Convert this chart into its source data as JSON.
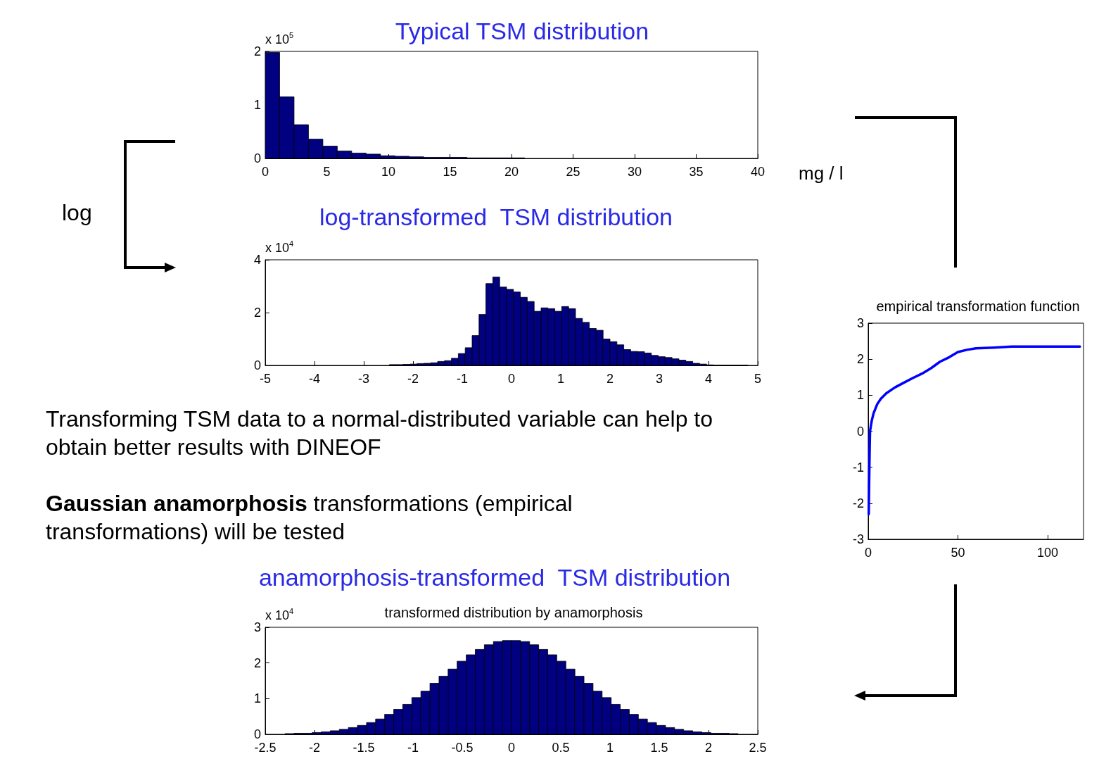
{
  "chart_data": [
    {
      "type": "histogram",
      "title": "Typical TSM distribution",
      "xlabel": "mg / l",
      "ylabel": "x 10$^{5}$",
      "bins": [
        0,
        1.17,
        2.34,
        3.51,
        4.68,
        5.85,
        7.02,
        8.19,
        9.36,
        10.53,
        11.7,
        12.87,
        14.04,
        15.21,
        16.38,
        17.55,
        18.72,
        19.89,
        21.06
      ],
      "values": [
        1.98,
        1.15,
        0.63,
        0.36,
        0.23,
        0.14,
        0.1,
        0.08,
        0.05,
        0.04,
        0.03,
        0.02,
        0.02,
        0.02,
        0.01,
        0.01,
        0.01,
        0.01
      ],
      "color": "#000080",
      "xlim": [
        0,
        40
      ],
      "xticks": [
        0,
        5,
        10,
        15,
        20,
        25,
        30,
        35,
        40
      ],
      "ylim": [
        0,
        2
      ],
      "yticks": [
        0,
        1,
        2
      ],
      "grid": false
    },
    {
      "type": "histogram",
      "title": "log-transformed  TSM distribution",
      "ylabel": "x 10$^{4}$",
      "annotations": [
        "log"
      ],
      "bins": [
        -2.48,
        -2.34,
        -2.2,
        -2.06,
        -1.92,
        -1.78,
        -1.64,
        -1.5,
        -1.36,
        -1.22,
        -1.08,
        -0.94,
        -0.8,
        -0.66,
        -0.52,
        -0.38,
        -0.24,
        -0.1,
        0.04,
        0.18,
        0.32,
        0.46,
        0.6,
        0.74,
        0.88,
        1.02,
        1.16,
        1.3,
        1.44,
        1.58,
        1.72,
        1.86,
        2,
        2.14,
        2.28,
        2.42,
        2.56,
        2.7,
        2.84,
        2.98,
        3.12,
        3.26,
        3.4,
        3.54,
        3.68,
        3.82,
        3.96,
        4.1,
        4.24,
        4.38,
        4.52,
        4.66,
        4.8
      ],
      "values": [
        0.03,
        0.03,
        0.04,
        0.05,
        0.07,
        0.08,
        0.1,
        0.15,
        0.18,
        0.27,
        0.45,
        0.67,
        1.13,
        1.93,
        3.1,
        3.35,
        2.97,
        2.88,
        2.78,
        2.58,
        2.42,
        2.05,
        2.18,
        2.15,
        2.05,
        2.23,
        2.15,
        1.78,
        1.63,
        1.4,
        1.33,
        1,
        0.9,
        0.78,
        0.6,
        0.53,
        0.52,
        0.47,
        0.38,
        0.33,
        0.3,
        0.25,
        0.2,
        0.15,
        0.08,
        0.05,
        0.02,
        0.01,
        0.01,
        0.01,
        0.01,
        0.01
      ],
      "color": "#000080",
      "xlim": [
        -5,
        5
      ],
      "xticks": [
        -5,
        -4,
        -3,
        -2,
        -1,
        0,
        1,
        2,
        3,
        4,
        5
      ],
      "ylim": [
        0,
        4
      ],
      "yticks": [
        0,
        2,
        4
      ],
      "grid": false
    },
    {
      "type": "line",
      "title": "empirical transformation function",
      "x": [
        0.3,
        0.5,
        0.8,
        1,
        2,
        3,
        5,
        7,
        10,
        15,
        20,
        25,
        30,
        35,
        40,
        45,
        50,
        55,
        60,
        70,
        80,
        90,
        100,
        110,
        118
      ],
      "series": [
        {
          "color": "#0000ff",
          "values": [
            -2.3,
            -1.5,
            -0.5,
            0,
            0.3,
            0.5,
            0.75,
            0.9,
            1.05,
            1.22,
            1.35,
            1.48,
            1.6,
            1.75,
            1.93,
            2.05,
            2.2,
            2.26,
            2.3,
            2.32,
            2.35,
            2.35,
            2.35,
            2.35,
            2.35
          ]
        }
      ],
      "xlim": [
        0,
        120
      ],
      "xticks": [
        0,
        50,
        100
      ],
      "ylim": [
        -3,
        3
      ],
      "yticks": [
        -3,
        -2,
        -1,
        0,
        1,
        2,
        3
      ],
      "grid": false
    },
    {
      "type": "other",
      "annotations": [
        "Transforming TSM data to a normal-distributed variable can help to obtain better results with DINEOF",
        "Gaussian anamorphosis",
        "transformations (empirical transformations) will be tested"
      ]
    },
    {
      "type": "histogram",
      "title": "anamorphosis-transformed  TSM distribution",
      "subtitle": "transformed distribution by anamorphosis",
      "ylabel": "x 10$^{4}$",
      "bins": [
        -2.3,
        -2.208,
        -2.116,
        -2.024,
        -1.932,
        -1.84,
        -1.748,
        -1.656,
        -1.564,
        -1.472,
        -1.38,
        -1.288,
        -1.196,
        -1.104,
        -1.012,
        -0.92,
        -0.828,
        -0.736,
        -0.644,
        -0.552,
        -0.46,
        -0.368,
        -0.276,
        -0.184,
        -0.092,
        0,
        0.092,
        0.184,
        0.276,
        0.368,
        0.46,
        0.552,
        0.644,
        0.736,
        0.828,
        0.92,
        1.012,
        1.104,
        1.196,
        1.288,
        1.38,
        1.472,
        1.564,
        1.656,
        1.748,
        1.84,
        1.932,
        2.024,
        2.116,
        2.208,
        2.3
      ],
      "values": [
        0.02,
        0.03,
        0.03,
        0.05,
        0.07,
        0.1,
        0.14,
        0.19,
        0.25,
        0.33,
        0.43,
        0.56,
        0.7,
        0.84,
        1.03,
        1.21,
        1.43,
        1.63,
        1.83,
        2.05,
        2.23,
        2.38,
        2.51,
        2.6,
        2.63,
        2.63,
        2.6,
        2.51,
        2.38,
        2.23,
        2.05,
        1.83,
        1.63,
        1.43,
        1.21,
        1.03,
        0.84,
        0.7,
        0.56,
        0.43,
        0.33,
        0.25,
        0.19,
        0.14,
        0.1,
        0.07,
        0.05,
        0.03,
        0.03,
        0.02
      ],
      "color": "#000080",
      "xlim": [
        -2.5,
        2.5
      ],
      "xticks": [
        -2.5,
        -2,
        -1.5,
        -1,
        -0.5,
        0,
        0.5,
        1,
        1.5,
        2,
        2.5
      ],
      "ylim": [
        0,
        3
      ],
      "yticks": [
        0,
        1,
        2,
        3
      ],
      "grid": false
    }
  ]
}
